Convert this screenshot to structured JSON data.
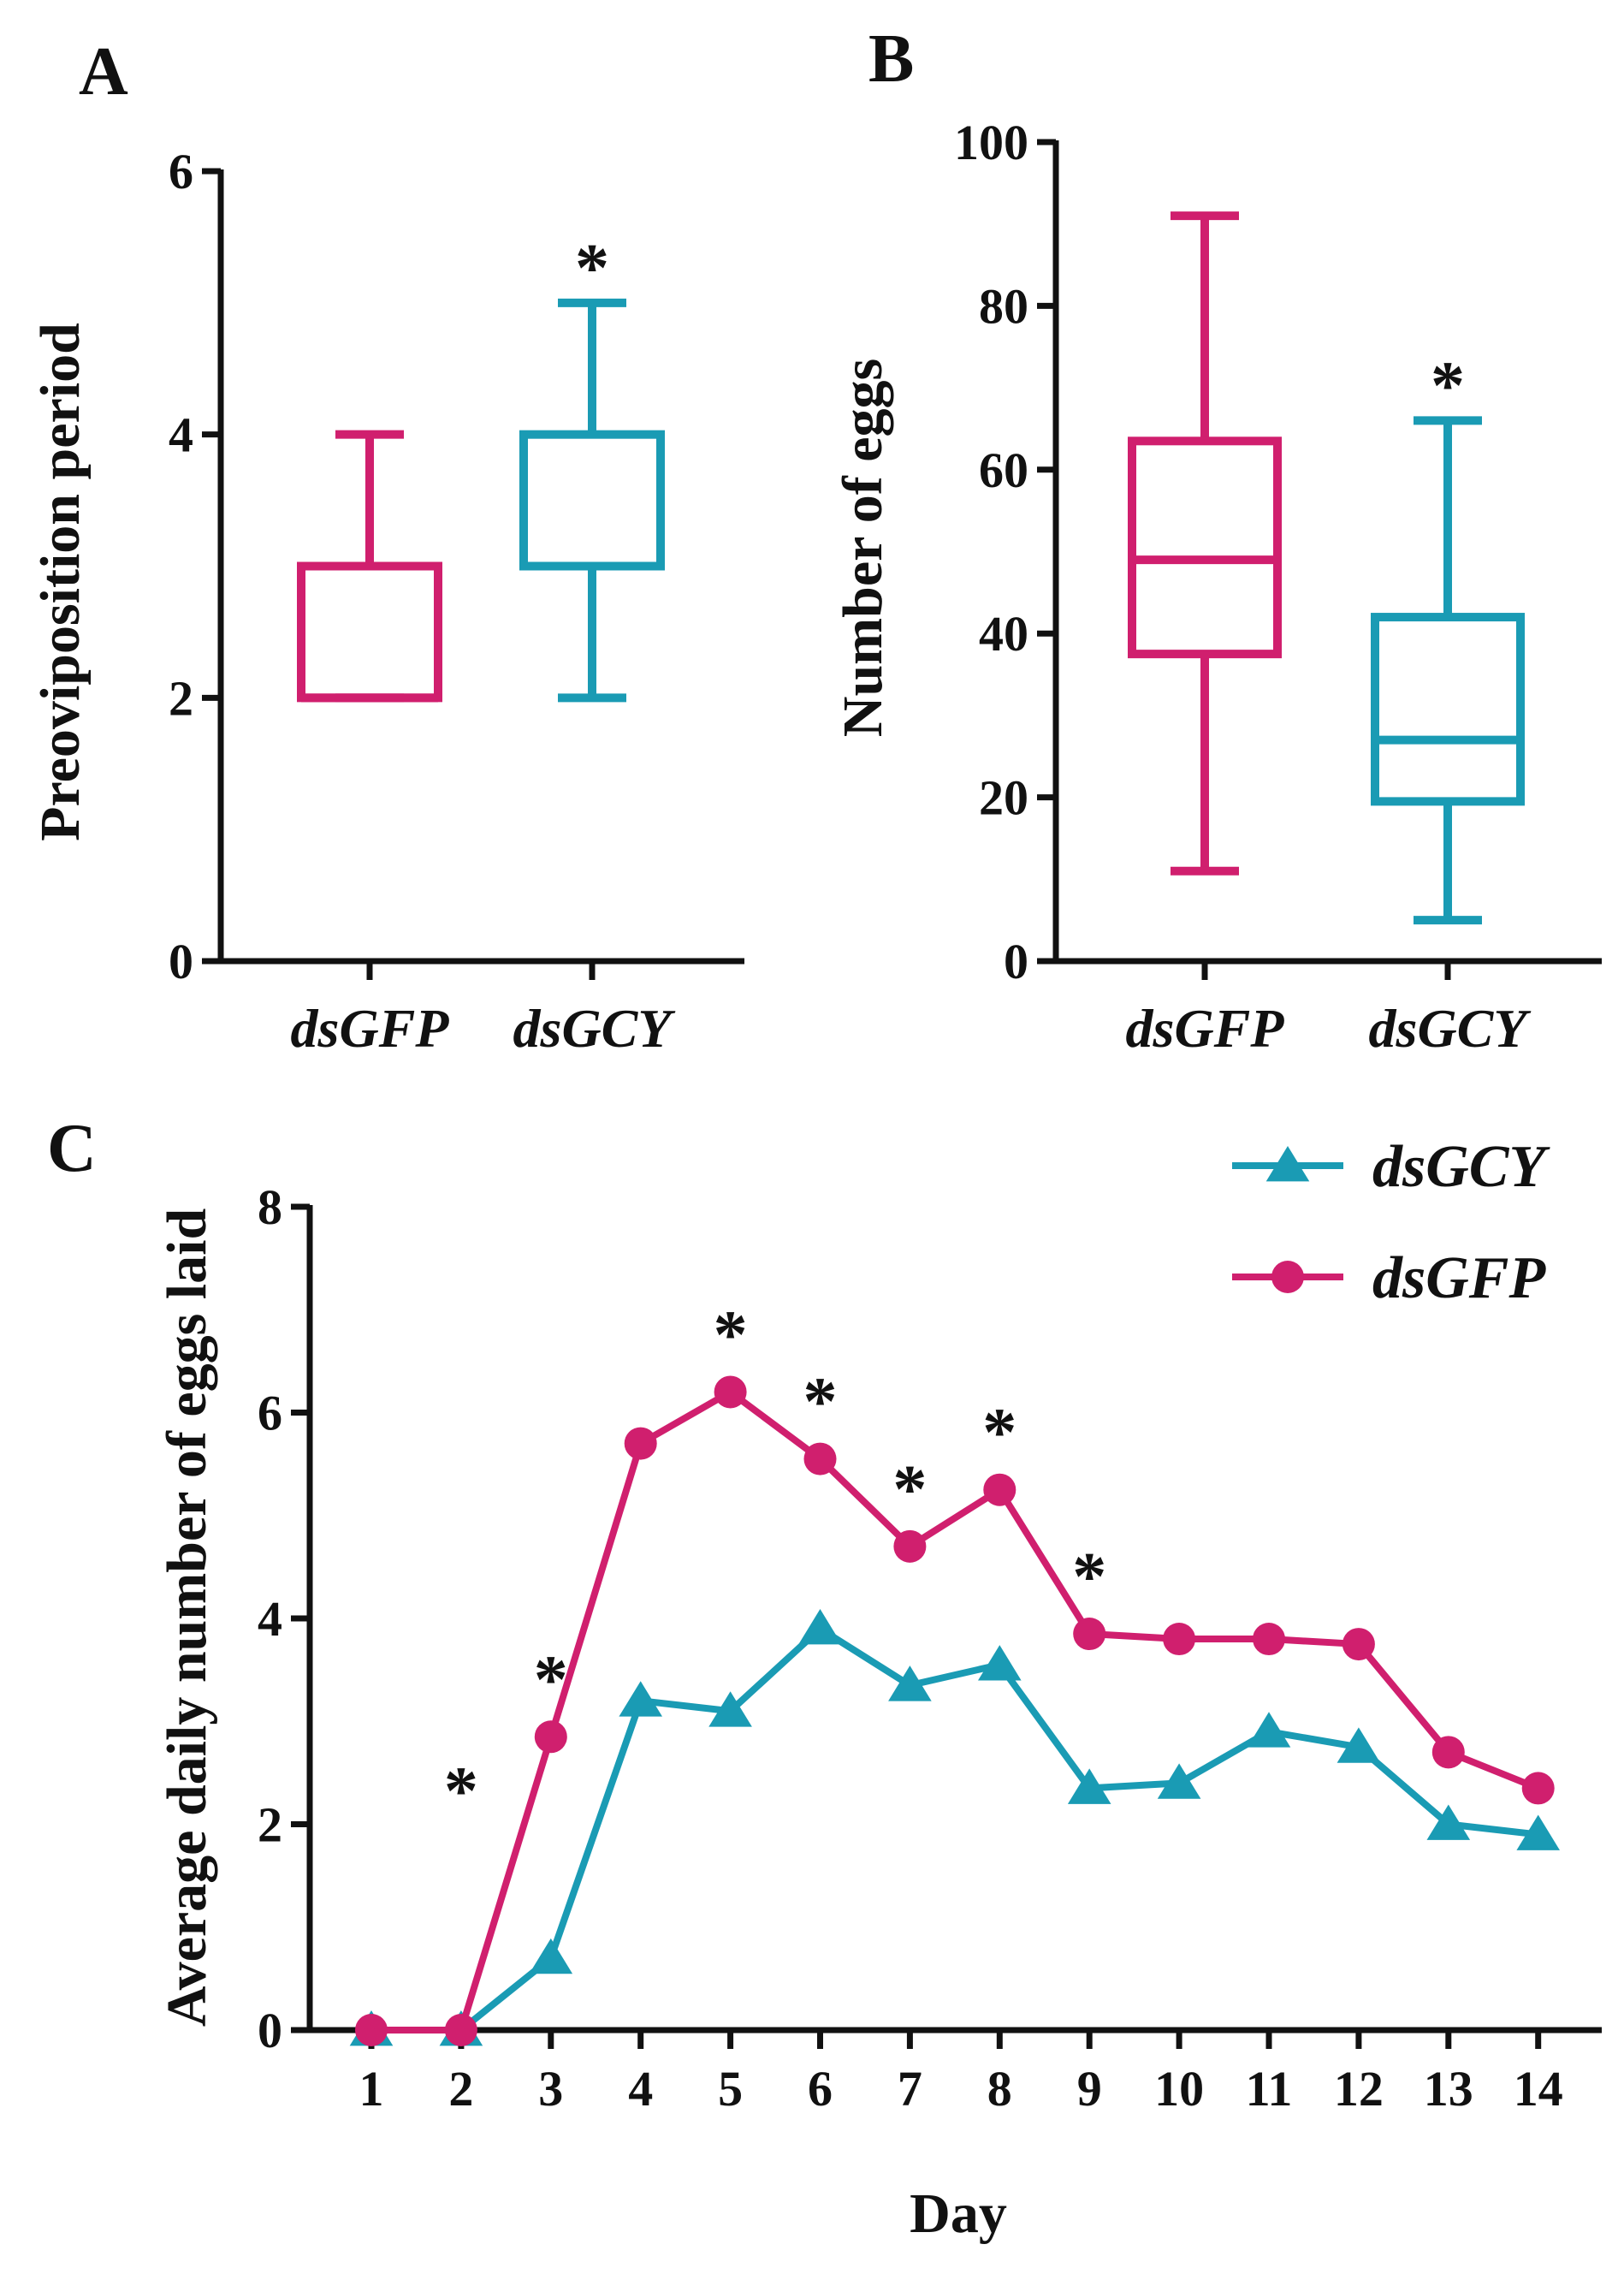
{
  "colors": {
    "dsGFP": "#d01f6e",
    "dsGCY": "#1a9bb4",
    "axis": "#111111"
  },
  "chart_data": [
    {
      "panel": "A",
      "type": "box",
      "ylabel": "Preoviposition period",
      "ylim": [
        0,
        6
      ],
      "yticks": [
        "0",
        "2",
        "4",
        "6"
      ],
      "categories": [
        "dsGFP",
        "dsGCY"
      ],
      "boxes": [
        {
          "name": "dsGFP",
          "min": 2,
          "q1": 2,
          "median": 2,
          "q3": 3,
          "max": 4,
          "sig": ""
        },
        {
          "name": "dsGCY",
          "min": 2,
          "q1": 3,
          "median": 3,
          "q3": 4,
          "max": 5,
          "sig": "*"
        }
      ]
    },
    {
      "panel": "B",
      "type": "box",
      "ylabel": "Number of eggs",
      "ylim": [
        0,
        100
      ],
      "yticks": [
        "0",
        "20",
        "40",
        "60",
        "80",
        "100"
      ],
      "categories": [
        "dsGFP",
        "dsGCY"
      ],
      "boxes": [
        {
          "name": "dsGFP",
          "min": 11,
          "q1": 37.5,
          "median": 49,
          "q3": 63.5,
          "max": 91,
          "sig": ""
        },
        {
          "name": "dsGCY",
          "min": 5,
          "q1": 19.5,
          "median": 27,
          "q3": 42,
          "max": 66,
          "sig": "*"
        }
      ]
    },
    {
      "panel": "C",
      "type": "line",
      "xlabel": "Day",
      "ylabel": "Average daily number of eggs laid",
      "ylim": [
        0,
        8
      ],
      "yticks": [
        "0",
        "2",
        "4",
        "6",
        "8"
      ],
      "x": [
        "1",
        "2",
        "3",
        "4",
        "5",
        "6",
        "7",
        "8",
        "9",
        "10",
        "11",
        "12",
        "13",
        "14"
      ],
      "series": [
        {
          "name": "dsGCY",
          "marker": "triangle",
          "values": [
            0,
            0,
            0.7,
            3.2,
            3.1,
            3.9,
            3.35,
            3.55,
            2.35,
            2.4,
            2.9,
            2.75,
            2.0,
            1.9
          ]
        },
        {
          "name": "dsGFP",
          "marker": "circle",
          "values": [
            0,
            0,
            2.85,
            5.7,
            6.2,
            5.55,
            4.7,
            5.25,
            3.85,
            3.8,
            3.8,
            3.75,
            2.7,
            2.35
          ]
        }
      ],
      "significance": [
        {
          "day": 2,
          "label": "*"
        },
        {
          "day": 3,
          "label": "*"
        },
        {
          "day": 5,
          "label": "*"
        },
        {
          "day": 6,
          "label": "*"
        },
        {
          "day": 7,
          "label": "*"
        },
        {
          "day": 8,
          "label": "*"
        },
        {
          "day": 9,
          "label": "*"
        }
      ],
      "legend": [
        "dsGCY",
        "dsGFP"
      ]
    }
  ]
}
